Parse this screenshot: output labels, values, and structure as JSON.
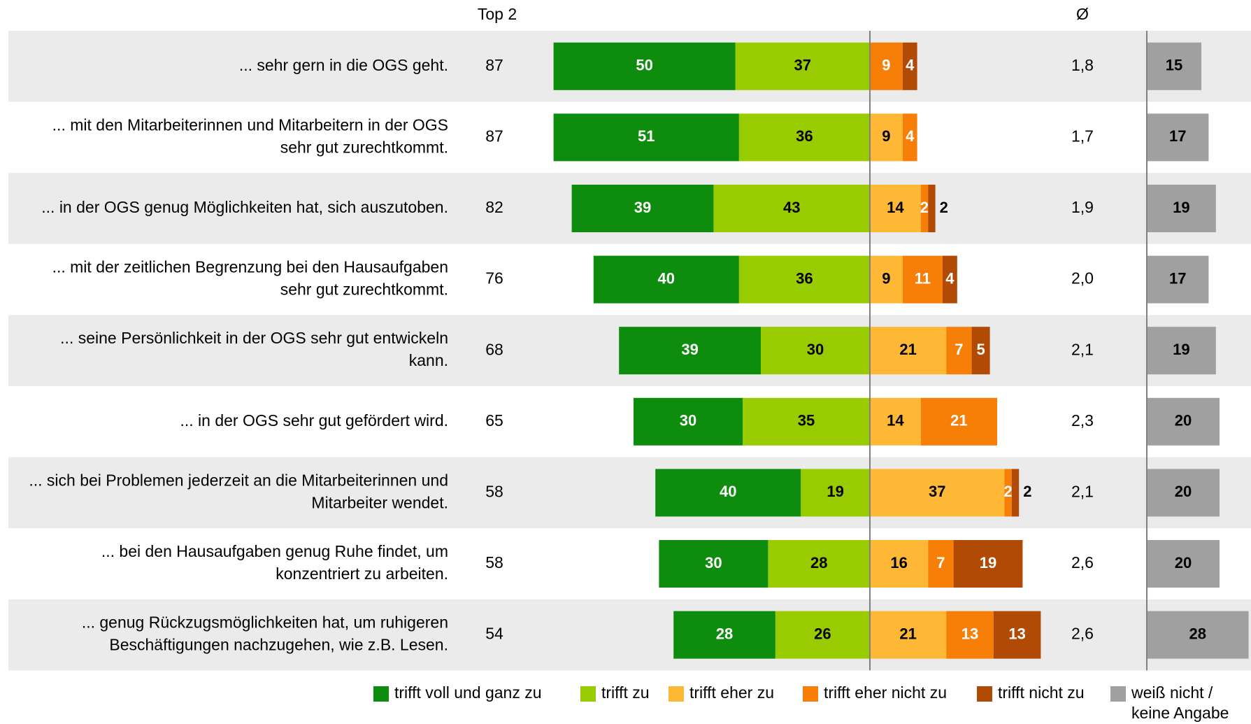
{
  "chart_data": {
    "type": "diverging-bar",
    "categories": [
      "... sehr gern in die OGS geht.",
      "... mit den Mitarbeiterinnen und Mitarbeitern in der OGS sehr gut zurechtkommt.",
      "... in der OGS genug Möglichkeiten hat, sich auszutoben.",
      "... mit der zeitlichen Begrenzung bei den Hausaufgaben sehr gut zurechtkommt.",
      "... seine Persönlichkeit in der OGS sehr gut entwickeln kann.",
      "... in der OGS sehr gut gefördert wird.",
      "... sich bei Problemen jederzeit an die Mitarbeiterinnen und Mitarbeiter wendet.",
      "... bei den Hausaufgaben genug Ruhe findet, um konzentriert zu arbeiten.",
      "... genug Rückzugsmöglichkeiten hat, um ruhigeren Beschäftigungen nachzugehen, wie z.B. Lesen."
    ],
    "series": [
      {
        "name": "trifft voll und ganz zu",
        "color": "#0e8c0e",
        "label_color": "#ffffff",
        "side": "left",
        "values": [
          50,
          51,
          39,
          40,
          39,
          30,
          40,
          30,
          28
        ]
      },
      {
        "name": "trifft zu",
        "color": "#99cc00",
        "label_color": "#000000",
        "side": "left",
        "values": [
          37,
          36,
          43,
          36,
          30,
          35,
          19,
          28,
          26
        ]
      },
      {
        "name": "trifft eher zu",
        "color": "#ffb836",
        "label_color": "#000000",
        "side": "right",
        "values": [
          null,
          9,
          14,
          9,
          21,
          14,
          37,
          16,
          21
        ]
      },
      {
        "name": "trifft eher nicht zu",
        "color": "#f77f07",
        "label_color": "#ffffff",
        "side": "right",
        "values": [
          9,
          4,
          2,
          11,
          7,
          21,
          2,
          7,
          13
        ]
      },
      {
        "name": "trifft nicht zu",
        "color": "#b04a04",
        "label_color": "#ffffff",
        "side": "right",
        "values": [
          4,
          null,
          2,
          4,
          5,
          null,
          2,
          19,
          13
        ]
      }
    ],
    "no_answer": {
      "name": "weiß nicht / keine Angabe",
      "color": "#a0a0a0",
      "label_color": "#000000",
      "values": [
        15,
        17,
        19,
        17,
        19,
        20,
        20,
        20,
        28
      ]
    },
    "top2": {
      "header": "Top 2",
      "values": [
        87,
        87,
        82,
        76,
        68,
        65,
        58,
        58,
        54
      ]
    },
    "mean": {
      "header": "Ø",
      "values": [
        1.8,
        1.7,
        1.9,
        2.0,
        2.1,
        2.3,
        2.1,
        2.6,
        2.6
      ],
      "value_labels": [
        "1,8",
        "1,7",
        "1,9",
        "2,0",
        "2,1",
        "2,3",
        "2,1",
        "2,6",
        "2,6"
      ]
    }
  }
}
